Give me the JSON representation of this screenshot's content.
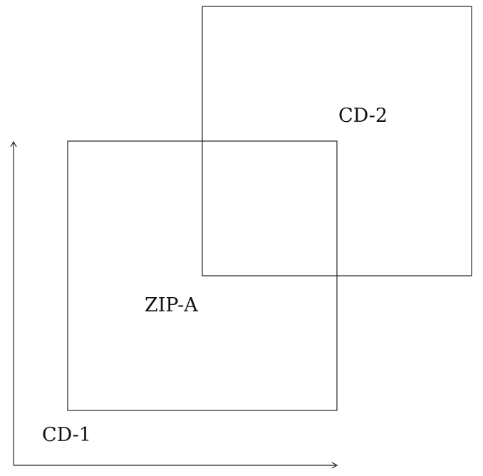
{
  "labels": {
    "box_a": "ZIP-A",
    "box_b": "CD-2",
    "corner": "CD-1"
  },
  "colors": {
    "stroke": "#222222",
    "text": "#111111",
    "background": "#ffffff"
  }
}
